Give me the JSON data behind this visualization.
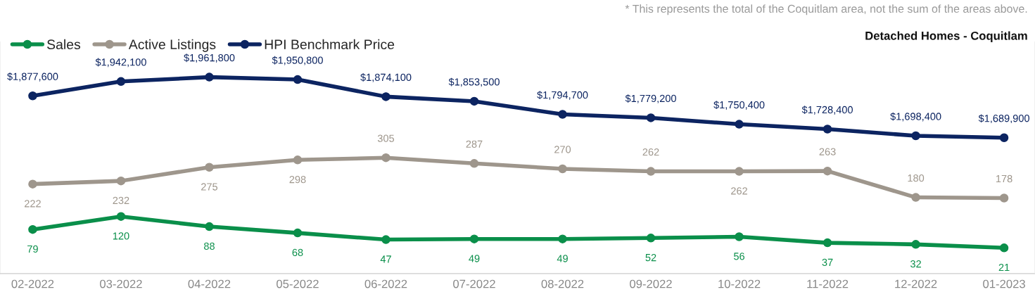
{
  "chart_data": {
    "type": "line",
    "title": "Detached Homes - Coquitlam",
    "annotations": [
      "* This represents the total of the Coquitlam area, not the sum of the areas above."
    ],
    "categories": [
      "02-2022",
      "03-2022",
      "04-2022",
      "05-2022",
      "06-2022",
      "07-2022",
      "08-2022",
      "09-2022",
      "10-2022",
      "11-2022",
      "12-2022",
      "01-2023"
    ],
    "series": [
      {
        "name": "Sales",
        "color": "#0a8f4a",
        "values": [
          79,
          120,
          88,
          68,
          47,
          49,
          49,
          52,
          56,
          37,
          32,
          21
        ],
        "value_labels": [
          "79",
          "120",
          "88",
          "68",
          "47",
          "49",
          "49",
          "52",
          "56",
          "37",
          "32",
          "21"
        ]
      },
      {
        "name": "Active Listings",
        "color": "#9e968c",
        "values": [
          222,
          232,
          275,
          298,
          305,
          287,
          270,
          262,
          262,
          263,
          180,
          178
        ],
        "value_labels": [
          "222",
          "232",
          "275",
          "298",
          "305",
          "287",
          "270",
          "262",
          "262",
          "263",
          "180",
          "178"
        ]
      },
      {
        "name": "HPI Benchmark Price",
        "color": "#0c2461",
        "axis": "y2",
        "values": [
          1877600,
          1942100,
          1961800,
          1950800,
          1874100,
          1853500,
          1794700,
          1779200,
          1750400,
          1728400,
          1698400,
          1689900
        ],
        "value_labels": [
          "$1,877,600",
          "$1,942,100",
          "$1,961,800",
          "$1,950,800",
          "$1,874,100",
          "$1,853,500",
          "$1,794,700",
          "$1,779,200",
          "$1,750,400",
          "$1,728,400",
          "$1,698,400",
          "$1,689,900"
        ]
      }
    ],
    "ylim": [
      -60,
      670
    ],
    "y2lim": [
      1080000,
      2120000
    ],
    "tick_labels": "x",
    "legend": "top left",
    "marker": "circle",
    "line_style": "solid",
    "grid": false
  }
}
